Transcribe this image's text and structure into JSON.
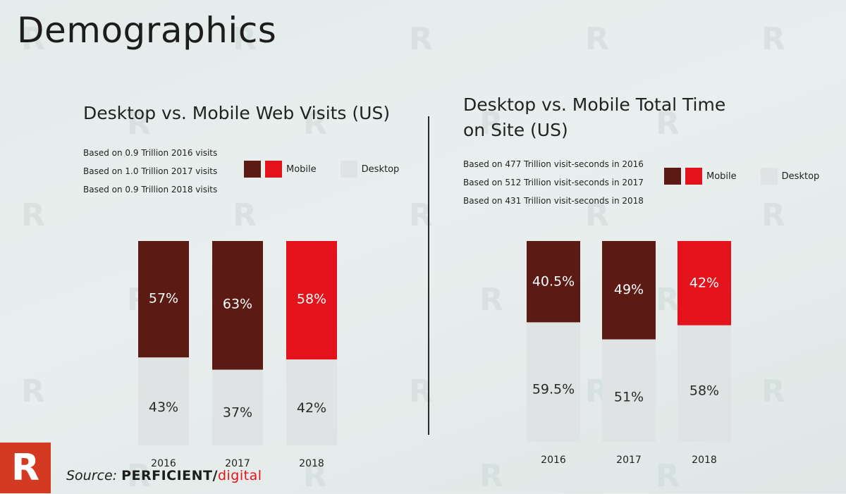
{
  "page": {
    "title": "Demographics"
  },
  "watermark": {
    "letter": "R"
  },
  "logo": {
    "letter": "R",
    "color": "#d43a22"
  },
  "source": {
    "label": "Source:",
    "brand": "PERFICIENT",
    "brand_suffix": "digital"
  },
  "colors": {
    "mobile_dark": "#5c1a14",
    "mobile_red": "#e4131b",
    "desktop": "#dfe3e3"
  },
  "left_chart": {
    "title": "Desktop vs. Mobile Web Visits (US)",
    "notes": [
      "Based on 0.9 Trillion 2016 visits",
      "Based on 1.0 Trillion 2017 visits",
      "Based on 0.9 Trillion 2018 visits"
    ],
    "legend": {
      "mobile": "Mobile",
      "desktop": "Desktop"
    }
  },
  "right_chart": {
    "title_line1": "Desktop vs. Mobile Total Time",
    "title_line2": "on Site (US)",
    "notes": [
      "Based on 477 Trillion visit-seconds in 2016",
      "Based on 512 Trillion visit-seconds in 2017",
      "Based on 431 Trillion visit-seconds in 2018"
    ],
    "legend": {
      "mobile": "Mobile",
      "desktop": "Desktop"
    }
  },
  "chart_data": [
    {
      "type": "bar",
      "stacked": true,
      "title": "Desktop vs. Mobile Web Visits (US)",
      "categories": [
        "2016",
        "2017",
        "2018"
      ],
      "series": [
        {
          "name": "Mobile",
          "values": [
            57,
            63,
            58
          ],
          "labels": [
            "57%",
            "63%",
            "58%"
          ]
        },
        {
          "name": "Desktop",
          "values": [
            43,
            37,
            42
          ],
          "labels": [
            "43%",
            "37%",
            "42%"
          ]
        }
      ],
      "ylim": [
        0,
        100
      ],
      "grid": false,
      "legend": "top-right"
    },
    {
      "type": "bar",
      "stacked": true,
      "title": "Desktop vs. Mobile Total Time on Site (US)",
      "categories": [
        "2016",
        "2017",
        "2018"
      ],
      "series": [
        {
          "name": "Mobile",
          "values": [
            40.5,
            49,
            42
          ],
          "labels": [
            "40.5%",
            "49%",
            "42%"
          ]
        },
        {
          "name": "Desktop",
          "values": [
            59.5,
            51,
            58
          ],
          "labels": [
            "59.5%",
            "51%",
            "58%"
          ]
        }
      ],
      "ylim": [
        0,
        100
      ],
      "grid": false,
      "legend": "top-right"
    }
  ]
}
